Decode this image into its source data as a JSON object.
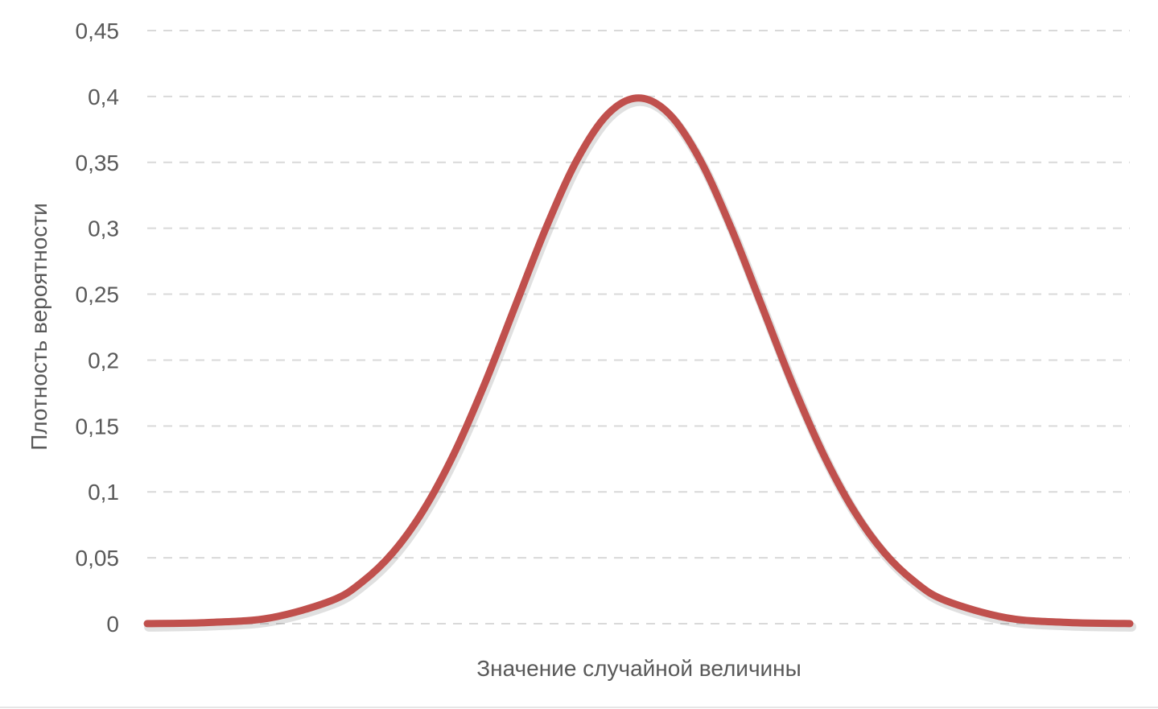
{
  "chart_data": {
    "type": "line",
    "title": "",
    "xlabel": "Значение случайной величины",
    "ylabel": "Плотность вероятности",
    "ylim": [
      0,
      0.45
    ],
    "xlim": [
      -4,
      4
    ],
    "grid": true,
    "legend": "none",
    "y_ticks": [
      "0",
      "0,05",
      "0,1",
      "0,15",
      "0,2",
      "0,25",
      "0,3",
      "0,35",
      "0,4",
      "0,45"
    ],
    "series": [
      {
        "color": "#c0504d",
        "x": [
          -4,
          -3.5,
          -3,
          -2.5,
          -2.25,
          -2,
          -1.75,
          -1.5,
          -1.25,
          -1,
          -0.75,
          -0.5,
          -0.25,
          0,
          0.25,
          0.5,
          0.75,
          1,
          1.25,
          1.5,
          1.75,
          2,
          2.25,
          2.5,
          3,
          3.5,
          4
        ],
        "y": [
          0.0001,
          0.0009,
          0.0044,
          0.0175,
          0.0317,
          0.054,
          0.0863,
          0.1295,
          0.1826,
          0.242,
          0.3011,
          0.3521,
          0.3867,
          0.3989,
          0.3867,
          0.3521,
          0.3011,
          0.242,
          0.1826,
          0.1295,
          0.0863,
          0.054,
          0.0317,
          0.0175,
          0.0044,
          0.0009,
          0.0001
        ]
      }
    ]
  }
}
